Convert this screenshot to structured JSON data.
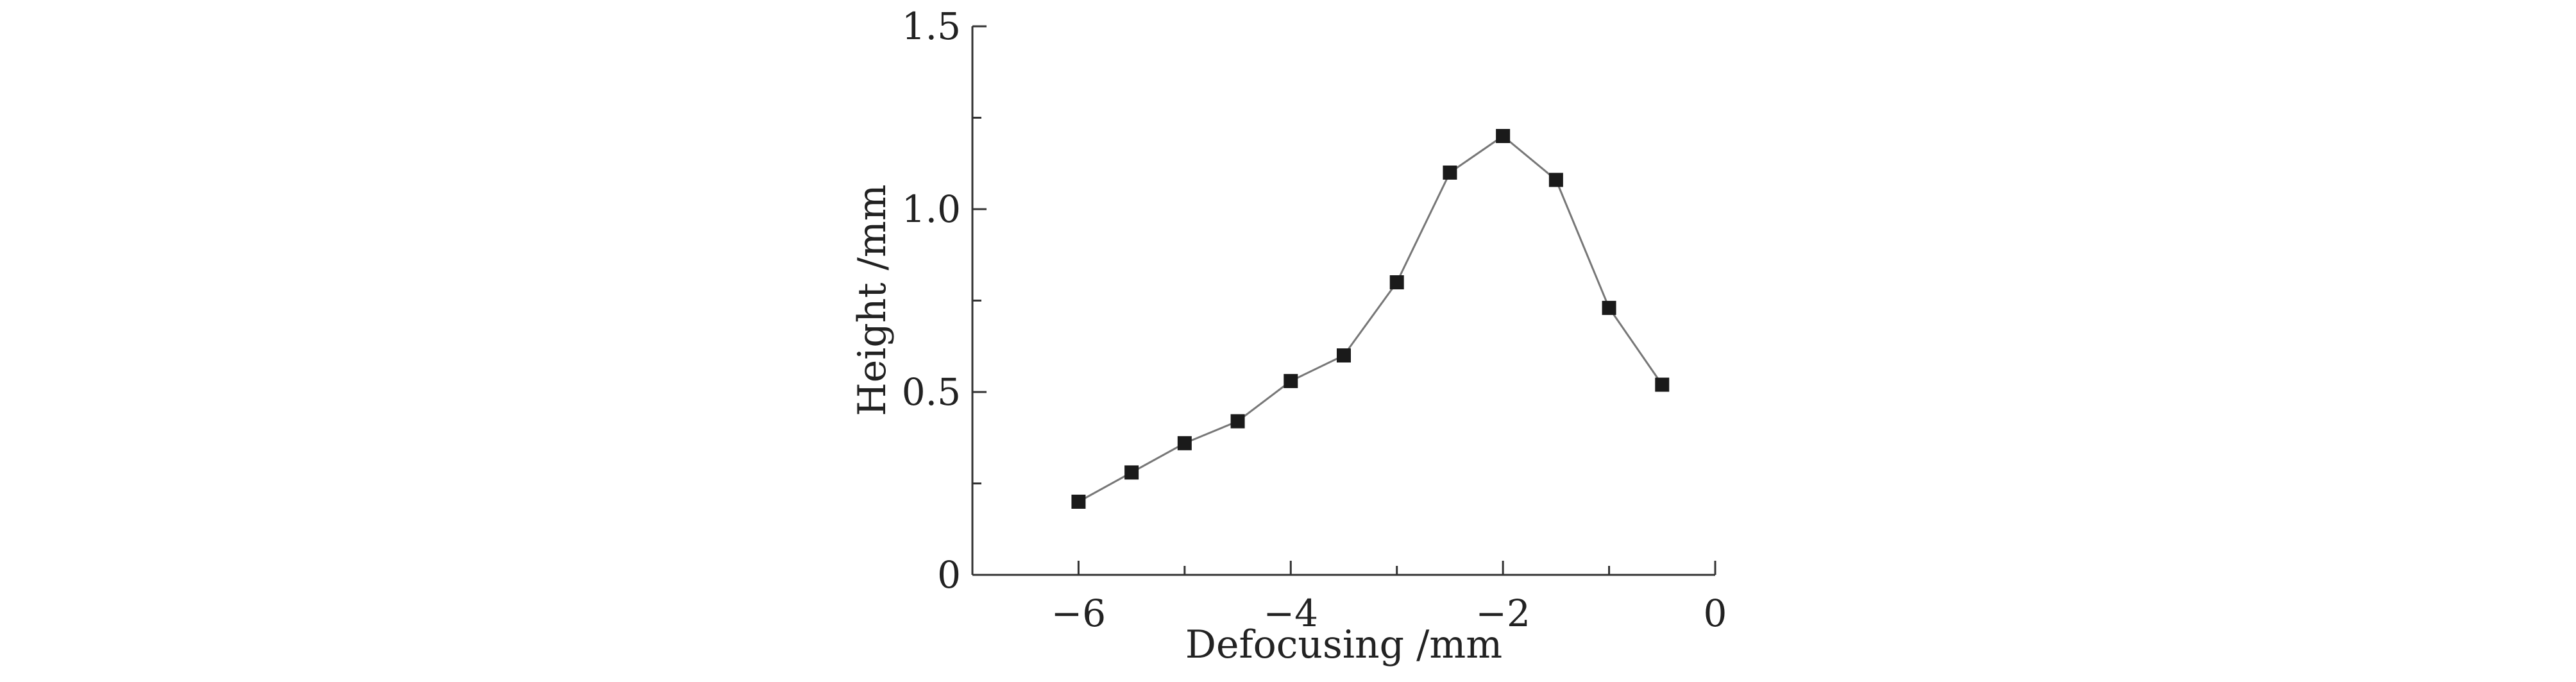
{
  "chart_data": {
    "type": "line",
    "title": "",
    "xlabel": "Defocusing /mm",
    "ylabel": "Height /mm",
    "xlim": [
      -7,
      0
    ],
    "ylim": [
      0,
      1.5
    ],
    "xticks": [
      -6,
      -4,
      -2,
      0
    ],
    "xtick_labels": [
      "−6",
      "−4",
      "−2",
      "0"
    ],
    "yticks": [
      0,
      0.5,
      1.0,
      1.5
    ],
    "ytick_labels": [
      "0",
      "0.5",
      "1.0",
      "1.5"
    ],
    "grid": false,
    "marker": "square",
    "colors": {
      "line": "#777777",
      "marker": "#1a1a1a"
    },
    "x": [
      -6,
      -5.5,
      -5,
      -4.5,
      -4,
      -3.5,
      -3,
      -2.5,
      -2,
      -1.5,
      -1,
      -0.5
    ],
    "y": [
      0.2,
      0.28,
      0.36,
      0.42,
      0.53,
      0.6,
      0.8,
      1.1,
      1.2,
      1.08,
      0.73,
      0.52
    ]
  }
}
